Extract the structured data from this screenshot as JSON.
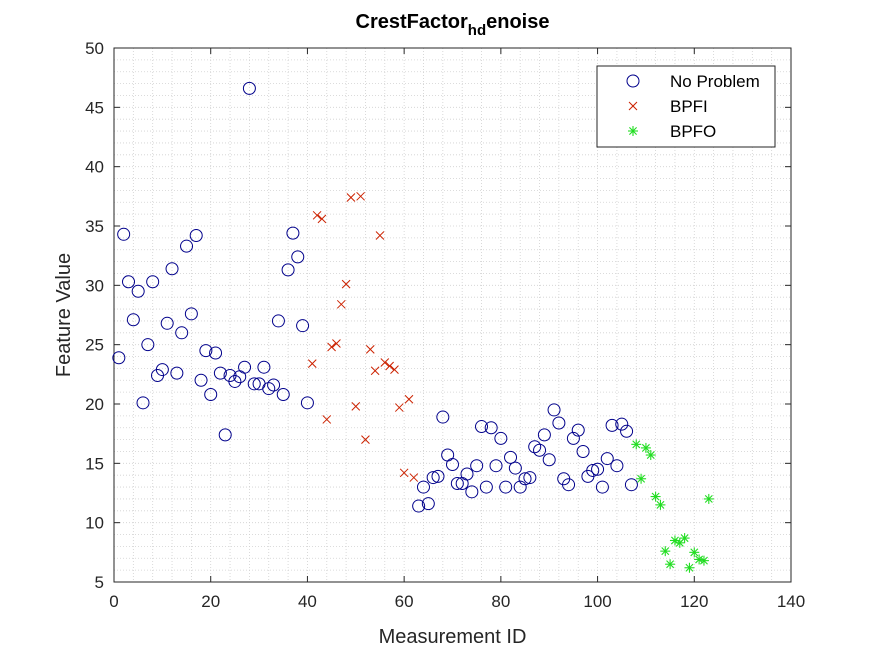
{
  "chart_data": {
    "type": "scatter",
    "title": {
      "main": "CrestFactor",
      "subscript": "hd",
      "suffix": "enoise"
    },
    "xlabel": "Measurement ID",
    "ylabel": "Feature Value",
    "xlim": [
      0,
      140
    ],
    "ylim": [
      5,
      50
    ],
    "xticks": [
      0,
      20,
      40,
      60,
      80,
      100,
      120,
      140
    ],
    "yticks": [
      5,
      10,
      15,
      20,
      25,
      30,
      35,
      40,
      45,
      50
    ],
    "grid": "minor-dotted",
    "legend_position": "top-right",
    "series": [
      {
        "name": "No Problem",
        "marker": "circle",
        "color": "#00008B",
        "x": [
          1,
          2,
          3,
          4,
          5,
          6,
          7,
          8,
          9,
          10,
          11,
          12,
          13,
          14,
          15,
          16,
          17,
          18,
          19,
          20,
          21,
          22,
          23,
          24,
          25,
          26,
          27,
          28,
          29,
          30,
          31,
          32,
          33,
          34,
          35,
          36,
          37,
          38,
          39,
          40,
          63,
          64,
          65,
          66,
          67,
          68,
          69,
          70,
          71,
          72,
          73,
          74,
          75,
          76,
          77,
          78,
          79,
          80,
          81,
          82,
          83,
          84,
          85,
          86,
          87,
          88,
          89,
          90,
          91,
          92,
          93,
          94,
          95,
          96,
          97,
          98,
          99,
          100,
          101,
          102,
          103,
          104,
          105,
          106,
          107
        ],
        "y": [
          23.9,
          34.3,
          30.3,
          27.1,
          29.5,
          20.1,
          25.0,
          30.3,
          22.4,
          22.9,
          26.8,
          31.4,
          22.6,
          26.0,
          33.3,
          27.6,
          34.2,
          22.0,
          24.5,
          20.8,
          24.3,
          22.6,
          17.4,
          22.4,
          21.9,
          22.3,
          23.1,
          46.6,
          21.7,
          21.7,
          23.1,
          21.3,
          21.6,
          27.0,
          20.8,
          31.3,
          34.4,
          32.4,
          26.6,
          20.1,
          11.4,
          13.0,
          11.6,
          13.8,
          13.9,
          18.9,
          15.7,
          14.9,
          13.3,
          13.3,
          14.1,
          12.6,
          14.8,
          18.1,
          13.0,
          18.0,
          14.8,
          17.1,
          13.0,
          15.5,
          14.6,
          13.0,
          13.7,
          13.8,
          16.4,
          16.1,
          17.4,
          15.3,
          19.5,
          18.4,
          13.7,
          13.2,
          17.1,
          17.8,
          16.0,
          13.9,
          14.4,
          14.5,
          13.0,
          15.4,
          18.2,
          14.8,
          18.3,
          17.7,
          13.2
        ]
      },
      {
        "name": "BPFI",
        "marker": "cross",
        "color": "#CC2200",
        "x": [
          41,
          42,
          43,
          44,
          45,
          46,
          47,
          48,
          49,
          50,
          51,
          52,
          53,
          54,
          55,
          56,
          57,
          58,
          59,
          60,
          61,
          62
        ],
        "y": [
          23.4,
          35.9,
          35.6,
          18.7,
          24.8,
          25.1,
          28.4,
          30.1,
          37.4,
          19.8,
          37.5,
          17.0,
          24.6,
          22.8,
          34.2,
          23.5,
          23.2,
          22.9,
          19.7,
          14.2,
          20.4,
          13.8
        ]
      },
      {
        "name": "BPFO",
        "marker": "asterisk",
        "color": "#22DD22",
        "x": [
          108,
          109,
          110,
          111,
          112,
          113,
          114,
          115,
          116,
          117,
          118,
          119,
          120,
          121,
          122,
          123
        ],
        "y": [
          16.6,
          13.7,
          16.3,
          15.7,
          12.2,
          11.5,
          7.6,
          6.5,
          8.5,
          8.3,
          8.7,
          6.2,
          7.5,
          6.9,
          6.8,
          12.0
        ]
      }
    ]
  }
}
